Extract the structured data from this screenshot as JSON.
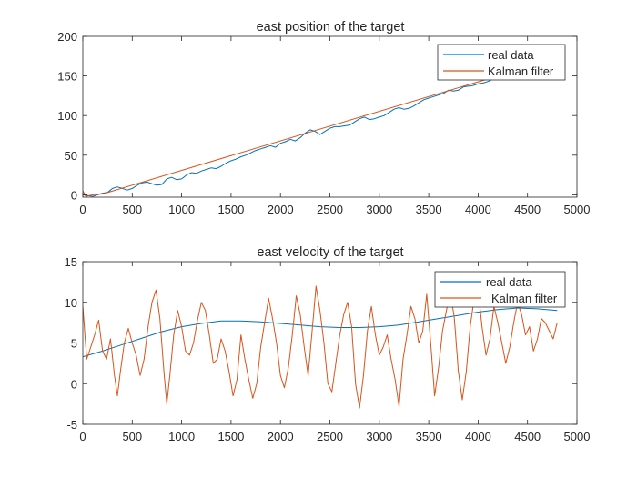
{
  "colors": {
    "real_data": "#0072BD",
    "kalman_filter": "#D95319",
    "axis": "#262626",
    "background": "#ffffff"
  },
  "chart_data": [
    {
      "type": "line",
      "title": "east position of the target",
      "xlabel": "",
      "ylabel": "",
      "xlim": [
        0,
        5000
      ],
      "ylim": [
        -3,
        200
      ],
      "xticks": [
        0,
        500,
        1000,
        1500,
        2000,
        2500,
        3000,
        3500,
        4000,
        4500,
        5000
      ],
      "yticks": [
        0,
        50,
        100,
        150,
        200
      ],
      "grid": false,
      "legend": {
        "location": "top-right",
        "entries": [
          "real data",
          "Kalman filter"
        ]
      },
      "series": [
        {
          "name": "real data",
          "color": "#0072BD",
          "x": [
            0,
            50,
            100,
            150,
            200,
            250,
            300,
            350,
            400,
            450,
            500,
            550,
            600,
            650,
            700,
            750,
            800,
            850,
            900,
            950,
            1000,
            1050,
            1100,
            1150,
            1200,
            1250,
            1300,
            1350,
            1400,
            1450,
            1500,
            1550,
            1600,
            1650,
            1700,
            1750,
            1800,
            1850,
            1900,
            1950,
            2000,
            2050,
            2100,
            2150,
            2200,
            2250,
            2300,
            2350,
            2400,
            2450,
            2500,
            2550,
            2600,
            2650,
            2700,
            2750,
            2800,
            2850,
            2900,
            2950,
            3000,
            3050,
            3100,
            3150,
            3200,
            3250,
            3300,
            3350,
            3400,
            3450,
            3500,
            3550,
            3600,
            3650,
            3700,
            3750,
            3800,
            3850,
            3900,
            3950,
            4000,
            4050,
            4100,
            4150,
            4200
          ],
          "y": [
            0,
            -1,
            -2,
            0,
            2,
            3,
            8,
            10,
            8,
            6,
            8,
            12,
            15,
            16,
            14,
            12,
            13,
            20,
            22,
            19,
            20,
            25,
            28,
            27,
            30,
            32,
            34,
            33,
            36,
            40,
            43,
            45,
            48,
            50,
            53,
            56,
            58,
            60,
            62,
            60,
            65,
            67,
            70,
            68,
            72,
            78,
            82,
            80,
            76,
            80,
            84,
            86,
            86,
            87,
            88,
            92,
            96,
            98,
            95,
            96,
            98,
            100,
            104,
            108,
            110,
            108,
            109,
            112,
            116,
            120,
            122,
            124,
            126,
            128,
            132,
            131,
            132,
            136,
            137,
            138,
            140,
            141,
            143,
            146,
            150
          ]
        },
        {
          "name": "Kalman filter",
          "color": "#D95319",
          "x": [
            0,
            30,
            100,
            200,
            4200
          ],
          "y": [
            5,
            -2,
            0,
            1,
            150
          ]
        }
      ]
    },
    {
      "type": "line",
      "title": "east velocity of the target",
      "xlabel": "",
      "ylabel": "",
      "xlim": [
        0,
        5000
      ],
      "ylim": [
        -5,
        15
      ],
      "xticks": [
        0,
        500,
        1000,
        1500,
        2000,
        2500,
        3000,
        3500,
        4000,
        4500,
        5000
      ],
      "yticks": [
        -5,
        0,
        5,
        10,
        15
      ],
      "grid": false,
      "legend": {
        "location": "top-right",
        "entries": [
          "real data",
          "Kalman filter"
        ]
      },
      "series": [
        {
          "name": "real data",
          "color": "#0072BD",
          "x": [
            0,
            200,
            400,
            600,
            800,
            1000,
            1200,
            1400,
            1600,
            1800,
            2000,
            2200,
            2400,
            2600,
            2800,
            3000,
            3200,
            3400,
            3600,
            3800,
            4000,
            4200,
            4400,
            4600,
            4800
          ],
          "y": [
            3.3,
            4.0,
            4.8,
            5.6,
            6.4,
            7.0,
            7.4,
            7.7,
            7.7,
            7.6,
            7.4,
            7.2,
            7.0,
            6.9,
            6.9,
            7.0,
            7.2,
            7.6,
            8.0,
            8.4,
            8.8,
            9.1,
            9.3,
            9.2,
            9.0
          ]
        },
        {
          "name": "Kalman filter",
          "color": "#D95319",
          "x": [
            0,
            40,
            80,
            120,
            160,
            200,
            240,
            280,
            320,
            350,
            380,
            420,
            460,
            500,
            540,
            580,
            620,
            660,
            700,
            740,
            780,
            820,
            850,
            880,
            920,
            960,
            1000,
            1040,
            1080,
            1120,
            1160,
            1200,
            1240,
            1280,
            1320,
            1360,
            1400,
            1440,
            1480,
            1520,
            1560,
            1600,
            1640,
            1680,
            1720,
            1760,
            1800,
            1840,
            1880,
            1920,
            1960,
            2000,
            2040,
            2080,
            2120,
            2160,
            2200,
            2240,
            2280,
            2320,
            2360,
            2400,
            2440,
            2480,
            2520,
            2560,
            2600,
            2640,
            2680,
            2720,
            2760,
            2800,
            2840,
            2880,
            2920,
            2960,
            3000,
            3040,
            3080,
            3120,
            3160,
            3200,
            3240,
            3280,
            3320,
            3360,
            3400,
            3440,
            3480,
            3520,
            3560,
            3600,
            3640,
            3680,
            3720,
            3760,
            3800,
            3840,
            3880,
            3920,
            3960,
            4000,
            4040,
            4080,
            4120,
            4160,
            4200,
            4240,
            4280,
            4320,
            4360,
            4400,
            4440,
            4480,
            4520,
            4560,
            4600,
            4640,
            4680,
            4720,
            4760,
            4800
          ],
          "y": [
            9.5,
            3.0,
            4.5,
            6.0,
            7.8,
            4.0,
            3.0,
            5.5,
            1.0,
            -1.5,
            1.5,
            5.0,
            6.8,
            5.0,
            3.5,
            1.0,
            3.0,
            7.0,
            10.0,
            11.5,
            8.0,
            1.5,
            -2.5,
            1.0,
            6.0,
            9.0,
            7.0,
            4.0,
            3.5,
            5.0,
            7.8,
            10.0,
            9.0,
            6.0,
            2.5,
            3.0,
            5.5,
            4.0,
            1.5,
            -1.5,
            0.5,
            6.0,
            3.0,
            0.5,
            -1.8,
            0.0,
            4.5,
            7.5,
            10.5,
            8.0,
            5.0,
            1.0,
            -0.5,
            2.0,
            6.0,
            10.8,
            8.5,
            4.5,
            1.0,
            6.5,
            12.0,
            9.0,
            5.0,
            0.0,
            -1.0,
            2.5,
            6.0,
            8.5,
            10.0,
            7.0,
            0.0,
            -3.0,
            1.0,
            6.5,
            9.5,
            6.0,
            3.5,
            4.5,
            6.0,
            3.0,
            0.5,
            -2.8,
            3.0,
            6.0,
            9.5,
            8.0,
            5.0,
            6.5,
            11.0,
            5.0,
            -1.5,
            2.0,
            6.5,
            9.0,
            11.3,
            8.0,
            1.5,
            -2.0,
            1.5,
            7.0,
            10.5,
            11.5,
            7.0,
            3.5,
            5.5,
            9.5,
            7.5,
            5.0,
            2.5,
            4.5,
            7.5,
            10.0,
            8.5,
            6.0,
            7.0,
            4.0,
            5.5,
            8.0,
            7.5,
            6.5,
            5.5,
            7.5
          ]
        }
      ]
    }
  ]
}
